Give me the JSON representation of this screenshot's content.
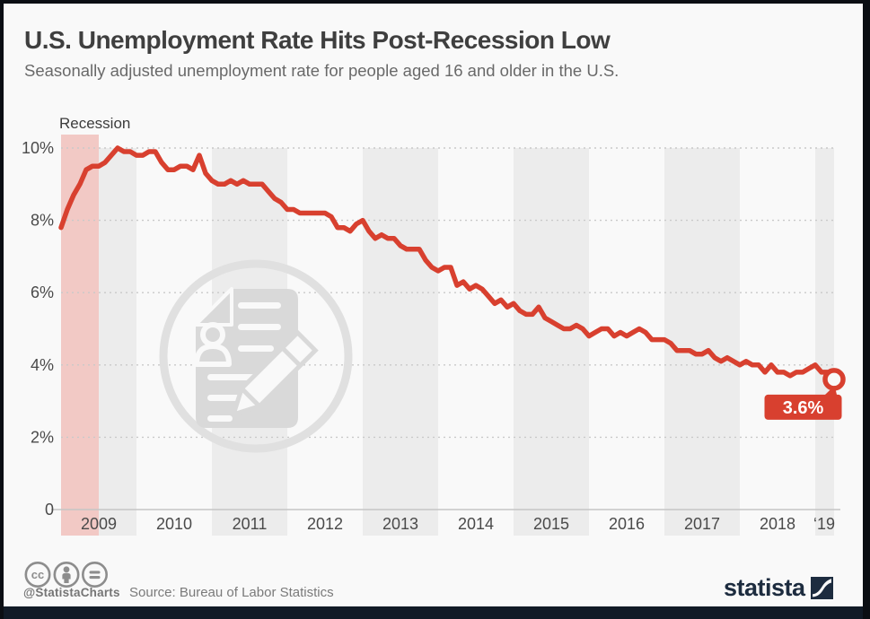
{
  "header": {
    "title": "U.S. Unemployment Rate Hits Post-Recession Low",
    "subtitle": "Seasonally adjusted unemployment rate for people aged 16 and older in the U.S."
  },
  "chart_data": {
    "type": "line",
    "title": "U.S. Unemployment Rate Hits Post-Recession Low",
    "ylabel": "Unemployment rate",
    "unit": "%",
    "x_frequency": "monthly",
    "x_start": "2009-01",
    "x_end": "2019-04",
    "ylim": [
      0,
      10.5
    ],
    "grid": "dotted horizontal lines",
    "gridline_values": [
      2,
      4,
      6,
      8,
      10
    ],
    "yticks": [
      {
        "label": "10%",
        "value": 10
      },
      {
        "label": "8%",
        "value": 8
      },
      {
        "label": "6%",
        "value": 6
      },
      {
        "label": "4%",
        "value": 4
      },
      {
        "label": "2%",
        "value": 2
      },
      {
        "label": "0",
        "value": 0
      }
    ],
    "xticks": [
      {
        "label": "2009",
        "year": 2009
      },
      {
        "label": "2010",
        "year": 2010
      },
      {
        "label": "2011",
        "year": 2011
      },
      {
        "label": "2012",
        "year": 2012
      },
      {
        "label": "2013",
        "year": 2013
      },
      {
        "label": "2014",
        "year": 2014
      },
      {
        "label": "2015",
        "year": 2015
      },
      {
        "label": "2016",
        "year": 2016
      },
      {
        "label": "2017",
        "year": 2017
      },
      {
        "label": "2018",
        "year": 2018
      },
      {
        "label": "‘19",
        "year": 2019
      }
    ],
    "shaded_years": [
      2009,
      2011,
      2013,
      2015,
      2017,
      2019
    ],
    "recession_band": {
      "label": "Recession",
      "from": "2009-01",
      "to": "2009-06"
    },
    "series": [
      {
        "name": "U.S. unemployment rate, seasonally adjusted (%)",
        "values": [
          7.8,
          8.3,
          8.7,
          9.0,
          9.4,
          9.5,
          9.5,
          9.6,
          9.8,
          10.0,
          9.9,
          9.9,
          9.8,
          9.8,
          9.9,
          9.9,
          9.6,
          9.4,
          9.4,
          9.5,
          9.5,
          9.4,
          9.8,
          9.3,
          9.1,
          9.0,
          9.0,
          9.1,
          9.0,
          9.1,
          9.0,
          9.0,
          9.0,
          8.8,
          8.6,
          8.5,
          8.3,
          8.3,
          8.2,
          8.2,
          8.2,
          8.2,
          8.2,
          8.1,
          7.8,
          7.8,
          7.7,
          7.9,
          8.0,
          7.7,
          7.5,
          7.6,
          7.5,
          7.5,
          7.3,
          7.2,
          7.2,
          7.2,
          6.9,
          6.7,
          6.6,
          6.7,
          6.7,
          6.2,
          6.3,
          6.1,
          6.2,
          6.1,
          5.9,
          5.7,
          5.8,
          5.6,
          5.7,
          5.5,
          5.4,
          5.4,
          5.6,
          5.3,
          5.2,
          5.1,
          5.0,
          5.0,
          5.1,
          5.0,
          4.8,
          4.9,
          5.0,
          5.0,
          4.8,
          4.9,
          4.8,
          4.9,
          5.0,
          4.9,
          4.7,
          4.7,
          4.7,
          4.6,
          4.4,
          4.4,
          4.4,
          4.3,
          4.3,
          4.4,
          4.2,
          4.1,
          4.2,
          4.1,
          4.0,
          4.1,
          4.0,
          4.0,
          3.8,
          4.0,
          3.8,
          3.8,
          3.7,
          3.8,
          3.8,
          3.9,
          4.0,
          3.8,
          3.8,
          3.6
        ]
      }
    ],
    "end_annotation": {
      "text": "3.6%",
      "value": 3.6,
      "date": "2019-04"
    },
    "legend_position": "none"
  },
  "footer": {
    "handle": "@StatistaCharts",
    "source": "Source: Bureau of Labor Statistics",
    "brand": "statista",
    "license_icons": [
      "cc-icon",
      "attribution-person-icon",
      "equals-nd-icon"
    ]
  },
  "colors": {
    "accent_red": "#d8402f",
    "recession_fill": "#f2c9c5",
    "year_band_gray": "#ececec",
    "background": "#f9f9f9",
    "gridline": "#c9c9c9",
    "axis_line": "#c5c5c5",
    "tick_text": "#4a4a4a",
    "title_text": "#3f3f3f",
    "subtitle_text": "#696969",
    "frame_dark": "#0b0e13",
    "bottom_bar": "#111a26",
    "brand_navy": "#1d2c3f",
    "watermark_gray": "#d9d9d9"
  }
}
